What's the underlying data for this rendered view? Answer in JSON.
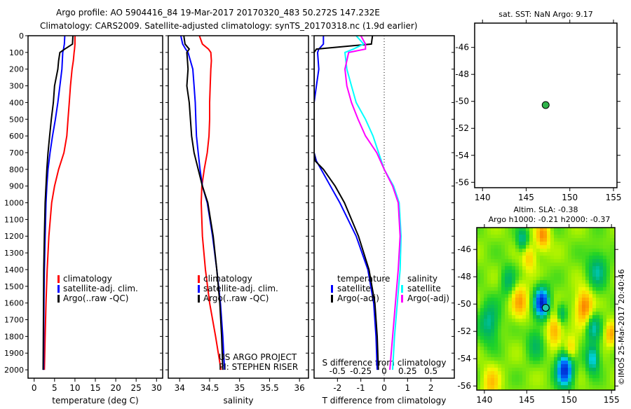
{
  "title_line1": "Argo profile: AO 5904416_84 19-Mar-2017 20170320_483 50.272S 147.232E",
  "title_line2": "Climatology: CARS2009. Satellite-adjusted climatology: synTS_20170318.nc (1.9d earlier)",
  "depth_ticks": [
    0,
    100,
    200,
    300,
    400,
    500,
    600,
    700,
    800,
    900,
    1000,
    1100,
    1200,
    1300,
    1400,
    1500,
    1600,
    1700,
    1800,
    1900,
    2000
  ],
  "colors": {
    "clim": "#ff0000",
    "sat": "#0000ff",
    "argo": "#000000",
    "sal_sat": "#00ffff",
    "sal_argo": "#ff00ff"
  },
  "chart_data": [
    {
      "type": "line",
      "id": "temperature",
      "xlabel": "temperature (deg C)",
      "xlim": [
        -1.5,
        31.5
      ],
      "ylim": [
        0,
        2050
      ],
      "xticks": [
        0,
        5,
        10,
        15,
        20,
        25,
        30
      ],
      "legend": [
        "climatology",
        "satellite-adj. clim.",
        "Argo(..raw -QC)"
      ],
      "legend_position": "lower-middle",
      "depth": [
        0,
        50,
        80,
        100,
        150,
        200,
        300,
        400,
        500,
        600,
        700,
        800,
        900,
        1000,
        1200,
        1400,
        1600,
        1800,
        2000
      ],
      "series": [
        {
          "name": "climatology",
          "values": [
            10,
            10,
            9.9,
            9.8,
            9.6,
            9.3,
            8.9,
            8.6,
            8.3,
            8.0,
            7.3,
            6.0,
            5.0,
            4.3,
            3.6,
            3.2,
            2.9,
            2.7,
            2.5
          ]
        },
        {
          "name": "satellite-adj. clim.",
          "values": [
            7.5,
            7.4,
            7.2,
            7.0,
            6.9,
            6.8,
            6.3,
            5.8,
            5.2,
            4.5,
            3.9,
            3.4,
            3.1,
            2.9,
            2.7,
            2.5,
            2.4,
            2.35,
            2.3
          ]
        },
        {
          "name": "Argo(..raw -QC)",
          "values": [
            9.5,
            9.4,
            7.5,
            6.3,
            6.0,
            5.8,
            5.0,
            4.7,
            4.2,
            3.8,
            3.4,
            3.1,
            2.9,
            2.7,
            2.5,
            2.35,
            2.3,
            2.25,
            2.2
          ]
        }
      ]
    },
    {
      "type": "line",
      "id": "salinity",
      "xlabel": "salinity",
      "xlim": [
        33.81,
        36.15
      ],
      "ylim": [
        0,
        2050
      ],
      "xticks": [
        34,
        34.5,
        35,
        35.5,
        36
      ],
      "legend": [
        "climatology",
        "satellite-adj. clim.",
        "Argo(..raw -QC)"
      ],
      "legend_position": "lower-middle",
      "annotation": [
        "US ARGO PROJECT",
        "PI: STEPHEN RISER"
      ],
      "depth": [
        0,
        50,
        80,
        100,
        150,
        200,
        300,
        400,
        500,
        600,
        700,
        800,
        900,
        1000,
        1200,
        1400,
        1600,
        1800,
        2000
      ],
      "series": [
        {
          "name": "climatology",
          "values": [
            34.33,
            34.38,
            34.48,
            34.52,
            34.53,
            34.52,
            34.51,
            34.5,
            34.5,
            34.49,
            34.46,
            34.41,
            34.37,
            34.36,
            34.38,
            34.43,
            34.5,
            34.6,
            34.69
          ]
        },
        {
          "name": "satellite-adj. clim.",
          "values": [
            34.02,
            34.05,
            34.1,
            34.14,
            34.18,
            34.22,
            34.24,
            34.26,
            34.27,
            34.28,
            34.31,
            34.34,
            34.38,
            34.46,
            34.55,
            34.62,
            34.68,
            34.72,
            34.75
          ]
        },
        {
          "name": "Argo(..raw -QC)",
          "values": [
            34.07,
            34.09,
            34.16,
            34.12,
            34.13,
            34.14,
            34.12,
            34.16,
            34.18,
            34.2,
            34.24,
            34.31,
            34.38,
            34.47,
            34.56,
            34.62,
            34.67,
            34.7,
            34.72
          ]
        }
      ]
    },
    {
      "type": "line",
      "id": "difference",
      "xlabel": "T difference from climatology",
      "x2label": "S difference from climatology",
      "xlim": [
        -3,
        3
      ],
      "ylim": [
        0,
        2050
      ],
      "xticks": [
        -2,
        -1,
        0,
        1,
        2
      ],
      "x2ticks": [
        -0.5,
        -0.25,
        0,
        0.25,
        0.5
      ],
      "legend_titles": [
        "temperature",
        "salinity"
      ],
      "legend": [
        "satellite",
        "Argo(-adj)",
        "satellite",
        "Argo(-adj)"
      ],
      "depth": [
        0,
        50,
        80,
        100,
        200,
        300,
        400,
        500,
        600,
        700,
        750,
        800,
        900,
        1000,
        1200,
        1400,
        1600,
        1800,
        2000
      ],
      "series": [
        {
          "name": "T satellite",
          "values": [
            -2.6,
            -2.6,
            -2.8,
            -2.85,
            -2.8,
            -2.9,
            -3,
            -3,
            -3,
            -3,
            -2.9,
            -2.7,
            -2.3,
            -1.9,
            -1.2,
            -0.7,
            -0.45,
            -0.35,
            -0.3
          ]
        },
        {
          "name": "T Argo(-adj)",
          "values": [
            -0.5,
            -0.55,
            -2.9,
            -3,
            -3,
            -3,
            -3,
            -3,
            -3,
            -3,
            -2.95,
            -2.6,
            -2.1,
            -1.7,
            -1.1,
            -0.65,
            -0.4,
            -0.3,
            -0.25
          ]
        },
        {
          "name": "S satellite",
          "values": [
            -0.3,
            -0.22,
            -0.33,
            -0.42,
            -0.4,
            -0.35,
            -0.3,
            -0.2,
            -0.12,
            -0.06,
            -0.03,
            0,
            0.1,
            0.16,
            0.18,
            0.17,
            0.14,
            0.11,
            0.09
          ]
        },
        {
          "name": "S Argo(-adj)",
          "values": [
            -0.25,
            -0.2,
            -0.2,
            -0.38,
            -0.42,
            -0.4,
            -0.35,
            -0.28,
            -0.2,
            -0.08,
            -0.04,
            0,
            0.09,
            0.15,
            0.17,
            0.15,
            0.12,
            0.09,
            0.06
          ]
        }
      ]
    },
    {
      "type": "scatter",
      "id": "sst_map",
      "title": "sat. SST: NaN Argo: 9.17",
      "xlim": [
        139.1,
        155.4
      ],
      "ylim": [
        -56.4,
        -44.2
      ],
      "xticks": [
        140,
        145,
        150,
        155
      ],
      "yticks": [
        -46,
        -48,
        -50,
        -52,
        -54,
        -56
      ],
      "points": [
        {
          "lon": 147.232,
          "lat": -50.272
        }
      ]
    },
    {
      "type": "heatmap",
      "id": "sla_map",
      "title_line1": "Altim. SLA: -0.38",
      "title_line2": "Argo h1000: -0.21 h2000: -0.37",
      "xlim": [
        139.1,
        155.4
      ],
      "ylim": [
        -56.3,
        -44.4
      ],
      "xticks": [
        140,
        145,
        150,
        155
      ],
      "yticks": [
        -46,
        -48,
        -50,
        -52,
        -54,
        -56
      ],
      "side_label": "©IMOS 25-Mar-2017 20:40:46",
      "points": [
        {
          "lon": 147.232,
          "lat": -50.272
        }
      ],
      "features": [
        {
          "lon": 146.8,
          "lat": -49.9,
          "amp": -1.0,
          "r": 0.9
        },
        {
          "lon": 149.5,
          "lat": -54.8,
          "amp": -1.0,
          "r": 1.0
        },
        {
          "lon": 152.8,
          "lat": -54.0,
          "amp": -0.6,
          "r": 0.8
        },
        {
          "lon": 151.8,
          "lat": -50.2,
          "amp": 0.7,
          "r": 1.0
        },
        {
          "lon": 144.2,
          "lat": -49.8,
          "amp": 0.5,
          "r": 1.0
        },
        {
          "lon": 148.3,
          "lat": -51.9,
          "amp": 0.55,
          "r": 0.9
        },
        {
          "lon": 146.9,
          "lat": -45.0,
          "amp": 0.6,
          "r": 0.8
        },
        {
          "lon": 150.2,
          "lat": -53.3,
          "amp": 0.45,
          "r": 0.7
        },
        {
          "lon": 145.3,
          "lat": -46.6,
          "amp": 0.4,
          "r": 0.8
        },
        {
          "lon": 140.6,
          "lat": -51.4,
          "amp": -0.45,
          "r": 1.2
        },
        {
          "lon": 144.5,
          "lat": -45.3,
          "amp": -0.45,
          "r": 0.7
        },
        {
          "lon": 152.8,
          "lat": -51.7,
          "amp": -0.45,
          "r": 0.9
        },
        {
          "lon": 149.1,
          "lat": -50.7,
          "amp": -0.4,
          "r": 0.6
        },
        {
          "lon": 153.3,
          "lat": -47.5,
          "amp": -0.4,
          "r": 1.2
        },
        {
          "lon": 142.8,
          "lat": -48.3,
          "amp": -0.35,
          "r": 0.9
        },
        {
          "lon": 140.8,
          "lat": -55.8,
          "amp": 0.4,
          "r": 1.0
        },
        {
          "lon": 154.9,
          "lat": -52.2,
          "amp": 0.5,
          "r": 0.7
        },
        {
          "lon": 146.0,
          "lat": -52.8,
          "amp": -0.3,
          "r": 1.0
        }
      ]
    }
  ]
}
